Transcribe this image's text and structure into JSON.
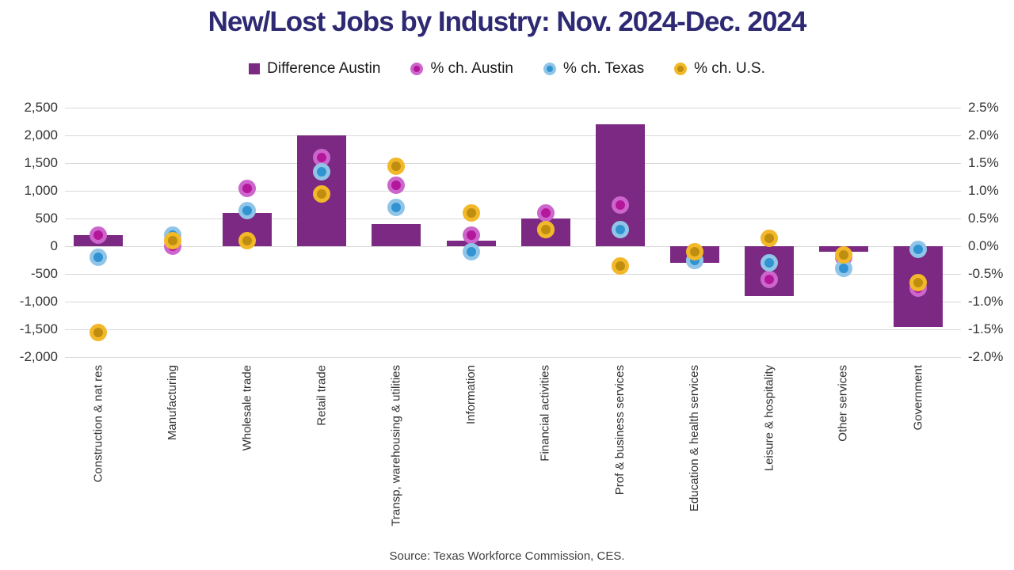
{
  "title": "New/Lost Jobs by Industry: Nov. 2024-Dec. 2024",
  "source": "Source: Texas Workforce Commission, CES.",
  "colors": {
    "title": "#2E2973",
    "grid": "#D9D9D9",
    "axis_text": "#333333",
    "category_text": "#333333",
    "legend_text": "#1A1A1A",
    "source_text": "#404040",
    "background": "#FFFFFF",
    "bar": "#7B2982"
  },
  "chart_data": {
    "type": "bar",
    "subtype": "dual-axis bar + scatter",
    "title": "New/Lost Jobs by Industry: Nov. 2024-Dec. 2024",
    "grid": true,
    "legend_position": "top",
    "categories": [
      "Construction & nat res",
      "Manufacturing",
      "Wholesale trade",
      "Retail trade",
      "Transp, warehousing & utilities",
      "Information",
      "Financial activities",
      "Prof & business services",
      "Education & health services",
      "Leisure & hospitality",
      "Other services",
      "Government"
    ],
    "series": [
      {
        "name": "Difference Austin",
        "type": "bar",
        "axis": "left",
        "color": "#7B2982",
        "values": [
          200,
          0,
          600,
          2000,
          400,
          100,
          500,
          2200,
          -300,
          -900,
          -100,
          -1450
        ]
      },
      {
        "name": "% ch. Austin",
        "type": "scatter",
        "axis": "right",
        "color_outer": "#CC66CC",
        "color_inner": "#B5179A",
        "values": [
          0.2,
          0.0,
          1.05,
          1.6,
          1.1,
          0.2,
          0.6,
          0.75,
          -0.25,
          -0.6,
          -0.2,
          -0.75
        ]
      },
      {
        "name": "% ch. Texas",
        "type": "scatter",
        "axis": "right",
        "color_outer": "#90C5E8",
        "color_inner": "#3193D1",
        "values": [
          -0.2,
          0.2,
          0.65,
          1.35,
          0.7,
          -0.1,
          0.3,
          0.3,
          -0.25,
          -0.3,
          -0.4,
          -0.05
        ]
      },
      {
        "name": "% ch. U.S.",
        "type": "scatter",
        "axis": "right",
        "color_outer": "#F2B829",
        "color_inner": "#BF8E10",
        "values": [
          -1.55,
          0.1,
          0.1,
          0.95,
          1.45,
          0.6,
          0.3,
          -0.35,
          -0.1,
          0.15,
          -0.15,
          -0.65
        ]
      }
    ],
    "left_axis": {
      "min": -2000,
      "max": 2500,
      "step": 500,
      "tick_labels": [
        "2,500",
        "2,000",
        "1,500",
        "1,000",
        "500",
        "0",
        "-500",
        "-1,000",
        "-1,500",
        "-2,000"
      ]
    },
    "right_axis": {
      "min": -2.0,
      "max": 2.5,
      "step": 0.5,
      "tick_labels": [
        "2.5%",
        "2.0%",
        "1.5%",
        "1.0%",
        "0.5%",
        "0.0%",
        "-0.5%",
        "-1.0%",
        "-1.5%",
        "-2.0%"
      ]
    }
  }
}
